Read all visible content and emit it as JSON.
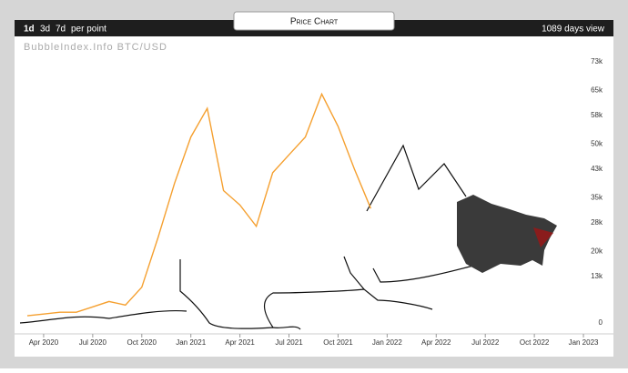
{
  "toolbar": {
    "resolutions": [
      "1d",
      "3d",
      "7d"
    ],
    "per_point": "per point",
    "view": "1089 days view"
  },
  "tab": "Price Chart",
  "chart_data": {
    "type": "line",
    "title": "BubbleIndex.Info BTC/USD",
    "color": "#f5a030",
    "x": [
      "2020-03",
      "2020-04",
      "2020-05",
      "2020-06",
      "2020-07",
      "2020-08",
      "2020-09",
      "2020-10",
      "2020-11",
      "2020-12",
      "2021-01",
      "2021-02",
      "2021-03",
      "2021-04",
      "2021-05",
      "2021-06",
      "2021-07",
      "2021-08",
      "2021-09",
      "2021-10",
      "2021-11",
      "2021-12"
    ],
    "values": [
      2000,
      2500,
      3000,
      3000,
      4500,
      6000,
      5000,
      10000,
      24000,
      39000,
      52000,
      60000,
      37000,
      33000,
      27000,
      42000,
      47000,
      52000,
      64000,
      55000,
      43000,
      32000
    ],
    "xlim": [
      "2020-02",
      "2023-02"
    ],
    "xticks": [
      {
        "value": "2020-04",
        "label": "Apr 2020"
      },
      {
        "value": "2020-07",
        "label": "Jul 2020"
      },
      {
        "value": "2020-10",
        "label": "Oct 2020"
      },
      {
        "value": "2021-01",
        "label": "Jan 2021"
      },
      {
        "value": "2021-04",
        "label": "Apr 2021"
      },
      {
        "value": "2021-07",
        "label": "Jul 2021"
      },
      {
        "value": "2021-10",
        "label": "Oct 2021"
      },
      {
        "value": "2022-01",
        "label": "Jan 2022"
      },
      {
        "value": "2022-04",
        "label": "Apr 2022"
      },
      {
        "value": "2022-07",
        "label": "Jul 2022"
      },
      {
        "value": "2022-10",
        "label": "Oct 2022"
      },
      {
        "value": "2023-01",
        "label": "Jan 2023"
      }
    ],
    "ylim": [
      0,
      73000
    ],
    "yticks": [
      0,
      {
        "value": 13000,
        "label": "13k"
      },
      {
        "value": 20000,
        "label": "20k"
      },
      {
        "value": 28000,
        "label": "28k"
      },
      {
        "value": 35000,
        "label": "35k"
      },
      {
        "value": 43000,
        "label": "43k"
      },
      {
        "value": 50000,
        "label": "50k"
      },
      {
        "value": 58000,
        "label": "58k"
      },
      {
        "value": 65000,
        "label": "65k"
      },
      {
        "value": 73000,
        "label": "73k"
      }
    ]
  }
}
